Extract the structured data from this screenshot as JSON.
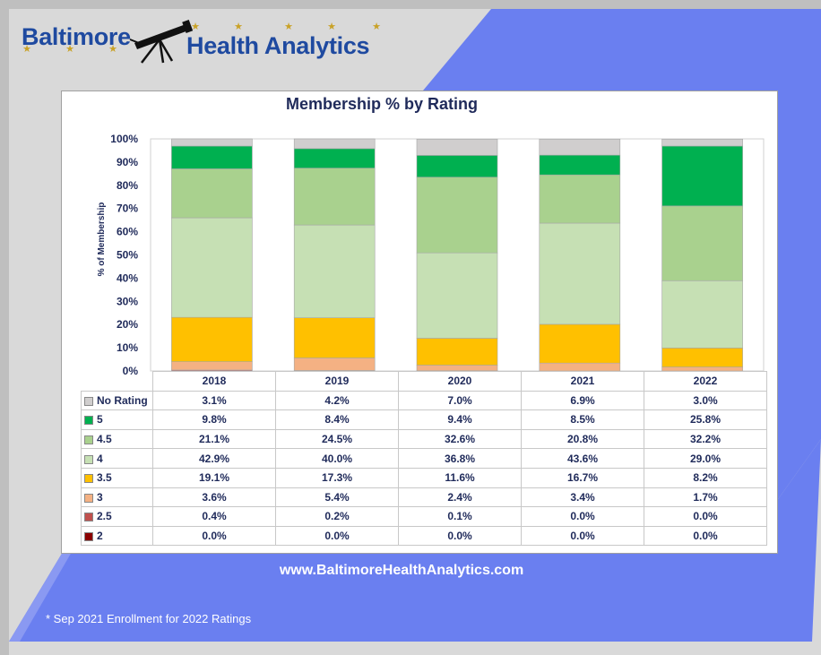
{
  "brand": {
    "name_part1": "Baltimore",
    "name_part2": "Health Analytics",
    "icon": "telescope-icon",
    "accent_color": "#1f4aa0",
    "star_color": "#c9a227"
  },
  "website": "www.BaltimoreHealthAnalytics.com",
  "footnote": "* Sep 2021 Enrollment for 2022 Ratings",
  "chart_data": {
    "type": "bar",
    "stacked": true,
    "title": "Membership  % by Rating",
    "xlabel": "",
    "ylabel": "% of Membership",
    "ylim": [
      0,
      100
    ],
    "yticks": [
      "0%",
      "10%",
      "20%",
      "30%",
      "40%",
      "50%",
      "60%",
      "70%",
      "80%",
      "90%",
      "100%"
    ],
    "grid": false,
    "legend": "data-table",
    "categories": [
      "2018",
      "2019",
      "2020",
      "2021",
      "2022"
    ],
    "series": [
      {
        "name": "2",
        "color": "#8b0000",
        "values": [
          0.0,
          0.0,
          0.0,
          0.0,
          0.0
        ],
        "labels": [
          "0.0%",
          "0.0%",
          "0.0%",
          "0.0%",
          "0.0%"
        ]
      },
      {
        "name": "2.5",
        "color": "#c0504d",
        "values": [
          0.4,
          0.2,
          0.1,
          0.0,
          0.0
        ],
        "labels": [
          "0.4%",
          "0.2%",
          "0.1%",
          "0.0%",
          "0.0%"
        ]
      },
      {
        "name": "3",
        "color": "#f4b183",
        "values": [
          3.6,
          5.4,
          2.4,
          3.4,
          1.7
        ],
        "labels": [
          "3.6%",
          "5.4%",
          "2.4%",
          "3.4%",
          "1.7%"
        ]
      },
      {
        "name": "3.5",
        "color": "#ffc000",
        "values": [
          19.1,
          17.3,
          11.6,
          16.7,
          8.2
        ],
        "labels": [
          "19.1%",
          "17.3%",
          "11.6%",
          "16.7%",
          "8.2%"
        ]
      },
      {
        "name": "4",
        "color": "#c6e0b4",
        "values": [
          42.9,
          40.0,
          36.8,
          43.6,
          29.0
        ],
        "labels": [
          "42.9%",
          "40.0%",
          "36.8%",
          "43.6%",
          "29.0%"
        ]
      },
      {
        "name": "4.5",
        "color": "#a9d18e",
        "values": [
          21.1,
          24.5,
          32.6,
          20.8,
          32.2
        ],
        "labels": [
          "21.1%",
          "24.5%",
          "32.6%",
          "20.8%",
          "32.2%"
        ]
      },
      {
        "name": "5",
        "color": "#00b050",
        "values": [
          9.8,
          8.4,
          9.4,
          8.5,
          25.8
        ],
        "labels": [
          "9.8%",
          "8.4%",
          "9.4%",
          "8.5%",
          "25.8%"
        ]
      },
      {
        "name": "No Rating",
        "color": "#d0cece",
        "values": [
          3.1,
          4.2,
          7.0,
          6.9,
          3.0
        ],
        "labels": [
          "3.1%",
          "4.2%",
          "7.0%",
          "6.9%",
          "3.0%"
        ]
      }
    ]
  }
}
